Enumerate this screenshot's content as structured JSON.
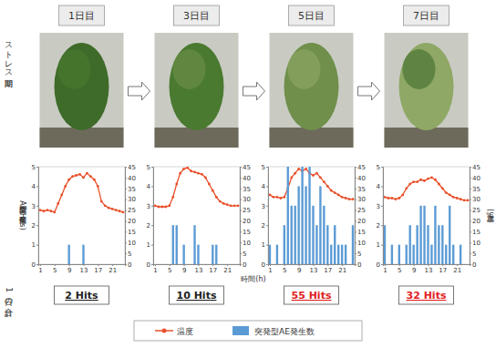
{
  "row_labels": [
    "ストレス期間",
    "1日の合計"
  ],
  "chart_data": [
    {
      "type": "bar",
      "title": "1日目",
      "x": [
        1,
        2,
        3,
        4,
        5,
        6,
        7,
        8,
        9,
        10,
        11,
        12,
        13,
        14,
        15,
        16,
        17,
        18,
        19,
        20,
        21,
        22,
        23,
        24
      ],
      "xlim": [
        0.5,
        24.5
      ],
      "xticks": [
        1,
        5,
        9,
        13,
        17,
        21
      ],
      "ylim": [
        0,
        5
      ],
      "yticks": [
        0,
        1,
        2,
        3,
        4,
        5
      ],
      "y2lim": [
        0,
        45
      ],
      "y2ticks": [
        0,
        5,
        10,
        15,
        20,
        25,
        30,
        35,
        40,
        45
      ],
      "y_label": "突発型AE発生数(Hits)",
      "series": [
        {
          "name": "温度",
          "type": "line",
          "color": "#e8502a",
          "marker": "circle",
          "axis": "y2",
          "values": [
            25,
            24.5,
            25,
            24.5,
            24,
            28,
            32,
            36,
            39,
            40.5,
            41,
            41.5,
            40,
            42,
            40.5,
            39,
            36,
            29,
            27,
            26,
            25.5,
            25,
            24.5,
            24
          ]
        },
        {
          "name": "突発型AE発生数",
          "type": "bar",
          "color": "#5b9bd5",
          "values": [
            0,
            0,
            0,
            0,
            0,
            0,
            0,
            0,
            1,
            0,
            0,
            0,
            1,
            0,
            0,
            0,
            0,
            0,
            0,
            0,
            0,
            0,
            0,
            0
          ]
        }
      ],
      "annotations": [
        {
          "text": "2 Hits"
        }
      ]
    },
    {
      "type": "bar",
      "title": "3日目",
      "x": [
        1,
        2,
        3,
        4,
        5,
        6,
        7,
        8,
        9,
        10,
        11,
        12,
        13,
        14,
        15,
        16,
        17,
        18,
        19,
        20,
        21,
        22,
        23,
        24
      ],
      "xlim": [
        0.5,
        24.5
      ],
      "xticks": [
        1,
        5,
        9,
        13,
        17,
        21
      ],
      "ylim": [
        0,
        5
      ],
      "yticks": [
        0,
        1,
        2,
        3,
        4,
        5
      ],
      "y2lim": [
        0,
        45
      ],
      "y2ticks": [
        0,
        5,
        10,
        15,
        20,
        25,
        30,
        35,
        40,
        45
      ],
      "x_label": "時間(h)",
      "series": [
        {
          "type": "line",
          "color": "#e8502a",
          "marker": "circle",
          "axis": "y2",
          "values": [
            27,
            26.5,
            26.5,
            26.5,
            27,
            31,
            37,
            42,
            44,
            44.5,
            43,
            42.5,
            42,
            41.5,
            40,
            37,
            34,
            31,
            29,
            28,
            27.5,
            27,
            27,
            27
          ]
        },
        {
          "type": "bar",
          "color": "#5b9bd5",
          "values": [
            0,
            0,
            0,
            0,
            0,
            2,
            2,
            0,
            1,
            0,
            0,
            2,
            1,
            0,
            0,
            0,
            1,
            1,
            0,
            0,
            0,
            0,
            0,
            0
          ]
        }
      ],
      "annotations": [
        {
          "text": "10 Hits"
        }
      ]
    },
    {
      "type": "bar",
      "title": "5日目",
      "x": [
        1,
        2,
        3,
        4,
        5,
        6,
        7,
        8,
        9,
        10,
        11,
        12,
        13,
        14,
        15,
        16,
        17,
        18,
        19,
        20,
        21,
        22,
        23,
        24
      ],
      "xlim": [
        0.5,
        24.5
      ],
      "xticks": [
        1,
        5,
        9,
        13,
        17,
        21
      ],
      "ylim": [
        0,
        5
      ],
      "yticks": [
        0,
        1,
        2,
        3,
        4,
        5
      ],
      "y2lim": [
        0,
        45
      ],
      "y2ticks": [
        0,
        5,
        10,
        15,
        20,
        25,
        30,
        35,
        40,
        45
      ],
      "series": [
        {
          "type": "line",
          "color": "#e8502a",
          "marker": "circle",
          "axis": "y2",
          "values": [
            32,
            31,
            31,
            30.5,
            31,
            35,
            40,
            42,
            44,
            43,
            44,
            42,
            41,
            42,
            40,
            38,
            36,
            34,
            33,
            32,
            31,
            30.5,
            30,
            30
          ]
        },
        {
          "type": "bar",
          "color": "#5b9bd5",
          "values": [
            1,
            0,
            1,
            0,
            2,
            5,
            3,
            3,
            4,
            5,
            4,
            5,
            3,
            2,
            4,
            3,
            2,
            1,
            2,
            1,
            1,
            1,
            0,
            2
          ]
        }
      ],
      "annotations": [
        {
          "text": "55 Hits",
          "color": "#e02020"
        }
      ]
    },
    {
      "type": "bar",
      "title": "7日目",
      "x": [
        1,
        2,
        3,
        4,
        5,
        6,
        7,
        8,
        9,
        10,
        11,
        12,
        13,
        14,
        15,
        16,
        17,
        18,
        19,
        20,
        21,
        22,
        23,
        24
      ],
      "xlim": [
        0.5,
        24.5
      ],
      "xticks": [
        1,
        5,
        9,
        13,
        17,
        21
      ],
      "ylim": [
        0,
        5
      ],
      "yticks": [
        0,
        1,
        2,
        3,
        4,
        5
      ],
      "y2lim": [
        0,
        45
      ],
      "y2ticks": [
        0,
        5,
        10,
        15,
        20,
        25,
        30,
        35,
        40,
        45
      ],
      "y2_label": "温度(℃)",
      "series": [
        {
          "type": "line",
          "color": "#e8502a",
          "marker": "circle",
          "axis": "y2",
          "values": [
            31,
            30.5,
            30.5,
            30,
            30.5,
            32,
            35,
            37,
            38,
            38,
            39,
            38.5,
            39.5,
            40,
            39,
            37,
            35,
            33,
            32,
            31,
            30.5,
            30,
            29.5,
            29.5
          ]
        },
        {
          "type": "bar",
          "color": "#5b9bd5",
          "values": [
            2,
            0,
            1,
            0,
            1,
            0,
            1,
            2,
            1,
            2,
            3,
            3,
            2,
            1,
            3,
            2,
            2,
            1,
            3,
            1,
            0,
            1,
            0,
            0
          ]
        }
      ],
      "annotations": [
        {
          "text": "32 Hits",
          "color": "#e02020"
        }
      ]
    }
  ]
}
